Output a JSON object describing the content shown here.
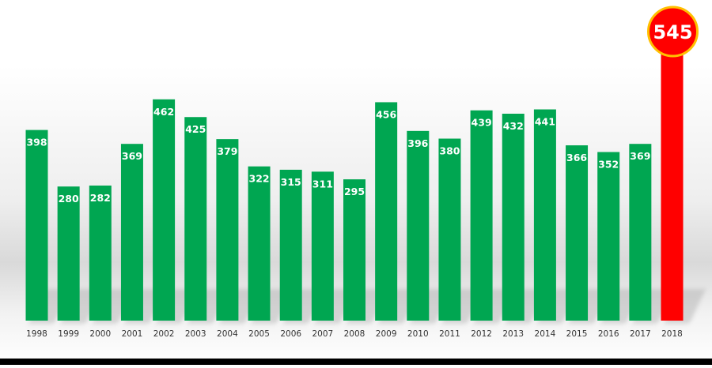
{
  "chart_data": {
    "type": "bar",
    "categories": [
      "1998",
      "1999",
      "2000",
      "2001",
      "2002",
      "2003",
      "2004",
      "2005",
      "2006",
      "2007",
      "2008",
      "2009",
      "2010",
      "2011",
      "2012",
      "2013",
      "2014",
      "2015",
      "2016",
      "2017",
      "2018"
    ],
    "values": [
      398,
      280,
      282,
      369,
      462,
      425,
      379,
      322,
      315,
      311,
      295,
      456,
      396,
      380,
      439,
      432,
      441,
      366,
      352,
      369,
      545
    ],
    "title": "",
    "xlabel": "",
    "ylabel": "",
    "ylim": [
      0,
      545
    ],
    "grid": false,
    "legend": "none",
    "colors": {
      "bar": "#00a651",
      "highlight_bar": "#ff0000",
      "highlight_badge_fill": "#ff0000",
      "highlight_badge_border": "#ffc000",
      "value_label": "#ffffff",
      "tick_label": "#333333"
    },
    "highlight_category": "2018"
  }
}
